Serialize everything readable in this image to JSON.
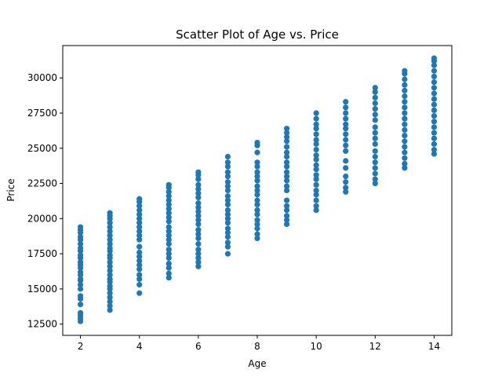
{
  "colors": {
    "point": "#1f77b4",
    "axes": "#000000",
    "background": "#ffffff"
  },
  "chart_data": {
    "type": "scatter",
    "title": "Scatter Plot of Age vs. Price",
    "xlabel": "Age",
    "ylabel": "Price",
    "xlim": [
      1.4,
      14.6
    ],
    "ylim": [
      11700,
      32300
    ],
    "grid": false,
    "legend": "none",
    "xticks": [
      2,
      4,
      6,
      8,
      10,
      12,
      14
    ],
    "yticks": [
      12500,
      15000,
      17500,
      20000,
      22500,
      25000,
      27500,
      30000
    ],
    "series": [
      {
        "points": [
          [
            2,
            12700
          ],
          [
            2,
            12900
          ],
          [
            2,
            13100
          ],
          [
            2,
            13300
          ],
          [
            2,
            13900
          ],
          [
            2,
            14300
          ],
          [
            2,
            14500
          ],
          [
            2,
            15000
          ],
          [
            2,
            15300
          ],
          [
            2,
            15600
          ],
          [
            2,
            15700
          ],
          [
            2,
            16000
          ],
          [
            2,
            16200
          ],
          [
            2,
            16500
          ],
          [
            2,
            16700
          ],
          [
            2,
            16900
          ],
          [
            2,
            17200
          ],
          [
            2,
            17400
          ],
          [
            2,
            17700
          ],
          [
            2,
            17900
          ],
          [
            2,
            18200
          ],
          [
            2,
            18500
          ],
          [
            2,
            18700
          ],
          [
            2,
            19000
          ],
          [
            2,
            19200
          ],
          [
            2,
            19400
          ],
          [
            3,
            13500
          ],
          [
            3,
            13800
          ],
          [
            3,
            14100
          ],
          [
            3,
            14400
          ],
          [
            3,
            14700
          ],
          [
            3,
            15000
          ],
          [
            3,
            15200
          ],
          [
            3,
            15500
          ],
          [
            3,
            15700
          ],
          [
            3,
            16000
          ],
          [
            3,
            16300
          ],
          [
            3,
            16600
          ],
          [
            3,
            16900
          ],
          [
            3,
            17200
          ],
          [
            3,
            17400
          ],
          [
            3,
            17700
          ],
          [
            3,
            17900
          ],
          [
            3,
            18200
          ],
          [
            3,
            18500
          ],
          [
            3,
            18800
          ],
          [
            3,
            19100
          ],
          [
            3,
            19400
          ],
          [
            3,
            19700
          ],
          [
            3,
            20000
          ],
          [
            3,
            20200
          ],
          [
            3,
            20400
          ],
          [
            4,
            14700
          ],
          [
            4,
            15300
          ],
          [
            4,
            15700
          ],
          [
            4,
            16000
          ],
          [
            4,
            16400
          ],
          [
            4,
            16700
          ],
          [
            4,
            17000
          ],
          [
            4,
            17300
          ],
          [
            4,
            17600
          ],
          [
            4,
            18000
          ],
          [
            4,
            18500
          ],
          [
            4,
            18800
          ],
          [
            4,
            19100
          ],
          [
            4,
            19400
          ],
          [
            4,
            19700
          ],
          [
            4,
            20000
          ],
          [
            4,
            20300
          ],
          [
            4,
            20600
          ],
          [
            4,
            20900
          ],
          [
            4,
            21200
          ],
          [
            4,
            21400
          ],
          [
            5,
            15800
          ],
          [
            5,
            16100
          ],
          [
            5,
            16500
          ],
          [
            5,
            16800
          ],
          [
            5,
            17200
          ],
          [
            5,
            17500
          ],
          [
            5,
            17800
          ],
          [
            5,
            18200
          ],
          [
            5,
            18500
          ],
          [
            5,
            18800
          ],
          [
            5,
            19100
          ],
          [
            5,
            19400
          ],
          [
            5,
            19800
          ],
          [
            5,
            20100
          ],
          [
            5,
            20400
          ],
          [
            5,
            20700
          ],
          [
            5,
            21000
          ],
          [
            5,
            21300
          ],
          [
            5,
            21600
          ],
          [
            5,
            21900
          ],
          [
            5,
            22200
          ],
          [
            5,
            22400
          ],
          [
            6,
            16600
          ],
          [
            6,
            16900
          ],
          [
            6,
            17200
          ],
          [
            6,
            17500
          ],
          [
            6,
            17800
          ],
          [
            6,
            18200
          ],
          [
            6,
            18600
          ],
          [
            6,
            18900
          ],
          [
            6,
            19200
          ],
          [
            6,
            19600
          ],
          [
            6,
            19900
          ],
          [
            6,
            20200
          ],
          [
            6,
            20500
          ],
          [
            6,
            20800
          ],
          [
            6,
            21100
          ],
          [
            6,
            21500
          ],
          [
            6,
            21800
          ],
          [
            6,
            22100
          ],
          [
            6,
            22400
          ],
          [
            6,
            22800
          ],
          [
            6,
            23100
          ],
          [
            6,
            23300
          ],
          [
            7,
            17500
          ],
          [
            7,
            18000
          ],
          [
            7,
            18300
          ],
          [
            7,
            18700
          ],
          [
            7,
            19000
          ],
          [
            7,
            19300
          ],
          [
            7,
            19700
          ],
          [
            7,
            20000
          ],
          [
            7,
            20300
          ],
          [
            7,
            20600
          ],
          [
            7,
            21000
          ],
          [
            7,
            21300
          ],
          [
            7,
            21600
          ],
          [
            7,
            22000
          ],
          [
            7,
            22300
          ],
          [
            7,
            22600
          ],
          [
            7,
            23000
          ],
          [
            7,
            23300
          ],
          [
            7,
            23700
          ],
          [
            7,
            24000
          ],
          [
            7,
            24400
          ],
          [
            8,
            18600
          ],
          [
            8,
            18900
          ],
          [
            8,
            19300
          ],
          [
            8,
            19600
          ],
          [
            8,
            19900
          ],
          [
            8,
            20300
          ],
          [
            8,
            20600
          ],
          [
            8,
            21000
          ],
          [
            8,
            21300
          ],
          [
            8,
            21700
          ],
          [
            8,
            22000
          ],
          [
            8,
            22300
          ],
          [
            8,
            22700
          ],
          [
            8,
            23000
          ],
          [
            8,
            23300
          ],
          [
            8,
            23700
          ],
          [
            8,
            24000
          ],
          [
            8,
            24700
          ],
          [
            8,
            25200
          ],
          [
            8,
            25400
          ],
          [
            9,
            19600
          ],
          [
            9,
            19900
          ],
          [
            9,
            20200
          ],
          [
            9,
            20600
          ],
          [
            9,
            20900
          ],
          [
            9,
            21300
          ],
          [
            9,
            22000
          ],
          [
            9,
            22300
          ],
          [
            9,
            22700
          ],
          [
            9,
            23000
          ],
          [
            9,
            23300
          ],
          [
            9,
            23700
          ],
          [
            9,
            24000
          ],
          [
            9,
            24400
          ],
          [
            9,
            24700
          ],
          [
            9,
            25100
          ],
          [
            9,
            25500
          ],
          [
            9,
            25800
          ],
          [
            9,
            26100
          ],
          [
            9,
            26400
          ],
          [
            10,
            20600
          ],
          [
            10,
            20900
          ],
          [
            10,
            21300
          ],
          [
            10,
            21700
          ],
          [
            10,
            22000
          ],
          [
            10,
            22400
          ],
          [
            10,
            22800
          ],
          [
            10,
            23100
          ],
          [
            10,
            23500
          ],
          [
            10,
            23800
          ],
          [
            10,
            24200
          ],
          [
            10,
            24500
          ],
          [
            10,
            24900
          ],
          [
            10,
            25300
          ],
          [
            10,
            25600
          ],
          [
            10,
            26000
          ],
          [
            10,
            26400
          ],
          [
            10,
            26700
          ],
          [
            10,
            27100
          ],
          [
            10,
            27500
          ],
          [
            11,
            21900
          ],
          [
            11,
            22200
          ],
          [
            11,
            22600
          ],
          [
            11,
            23000
          ],
          [
            11,
            23600
          ],
          [
            11,
            24100
          ],
          [
            11,
            24800
          ],
          [
            11,
            25200
          ],
          [
            11,
            25600
          ],
          [
            11,
            26000
          ],
          [
            11,
            26400
          ],
          [
            11,
            26700
          ],
          [
            11,
            27100
          ],
          [
            11,
            27500
          ],
          [
            11,
            27900
          ],
          [
            11,
            28300
          ],
          [
            12,
            22500
          ],
          [
            12,
            22800
          ],
          [
            12,
            23200
          ],
          [
            12,
            23600
          ],
          [
            12,
            24000
          ],
          [
            12,
            24400
          ],
          [
            12,
            24800
          ],
          [
            12,
            25300
          ],
          [
            12,
            25700
          ],
          [
            12,
            26100
          ],
          [
            12,
            26500
          ],
          [
            12,
            27000
          ],
          [
            12,
            27400
          ],
          [
            12,
            27800
          ],
          [
            12,
            28200
          ],
          [
            12,
            28600
          ],
          [
            12,
            29000
          ],
          [
            12,
            29300
          ],
          [
            13,
            23600
          ],
          [
            13,
            23900
          ],
          [
            13,
            24300
          ],
          [
            13,
            24700
          ],
          [
            13,
            25100
          ],
          [
            13,
            25500
          ],
          [
            13,
            25900
          ],
          [
            13,
            26300
          ],
          [
            13,
            26700
          ],
          [
            13,
            27100
          ],
          [
            13,
            27500
          ],
          [
            13,
            27900
          ],
          [
            13,
            28300
          ],
          [
            13,
            28700
          ],
          [
            13,
            29100
          ],
          [
            13,
            29500
          ],
          [
            13,
            29900
          ],
          [
            13,
            30300
          ],
          [
            13,
            30500
          ],
          [
            14,
            24600
          ],
          [
            14,
            24900
          ],
          [
            14,
            25300
          ],
          [
            14,
            25700
          ],
          [
            14,
            26100
          ],
          [
            14,
            26500
          ],
          [
            14,
            26900
          ],
          [
            14,
            27300
          ],
          [
            14,
            27700
          ],
          [
            14,
            28100
          ],
          [
            14,
            28500
          ],
          [
            14,
            28900
          ],
          [
            14,
            29300
          ],
          [
            14,
            29700
          ],
          [
            14,
            30100
          ],
          [
            14,
            30500
          ],
          [
            14,
            30900
          ],
          [
            14,
            31200
          ],
          [
            14,
            31400
          ]
        ]
      }
    ]
  }
}
